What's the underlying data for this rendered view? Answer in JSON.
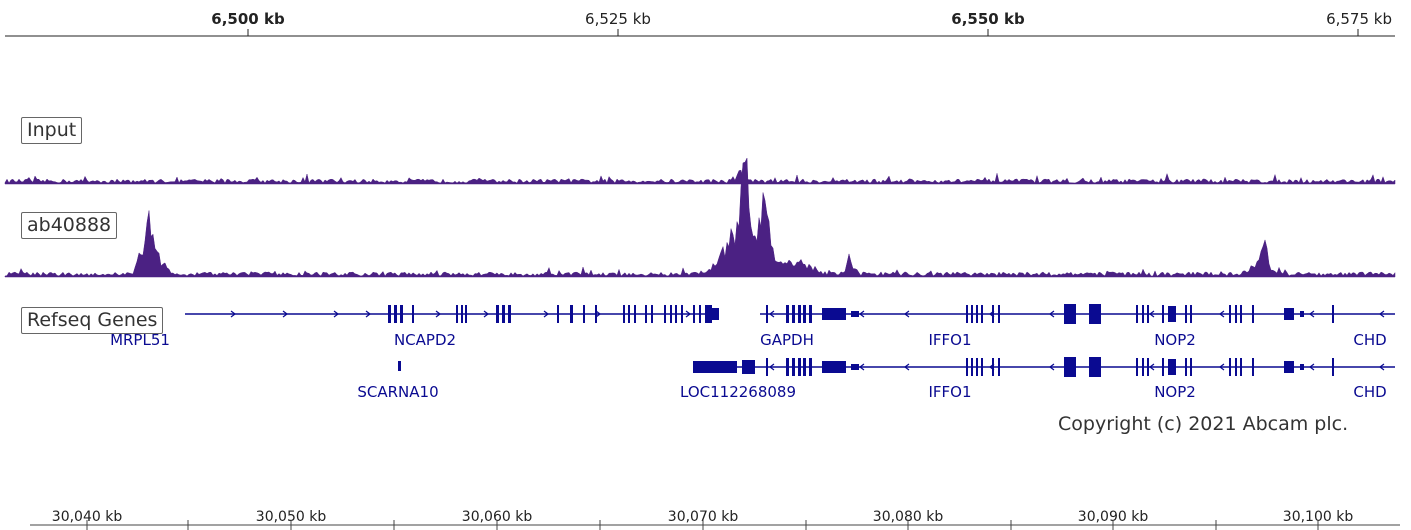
{
  "top_ruler": {
    "ticks": [
      {
        "label": "6,500 kb",
        "bold": true,
        "position_kb": 6500
      },
      {
        "label": "6,525 kb",
        "bold": false,
        "position_kb": 6525
      },
      {
        "label": "6,550 kb",
        "bold": true,
        "position_kb": 6550
      },
      {
        "label": "6,575 kb",
        "bold": false,
        "position_kb": 6575
      }
    ]
  },
  "tracks": {
    "input": {
      "label": "Input",
      "color": "#4b2183"
    },
    "chip": {
      "label": "ab40888",
      "color": "#4b2183"
    },
    "refseq": {
      "label": "Refseq Genes",
      "color": "#0a0a91"
    }
  },
  "genes_row1": [
    {
      "name": "MRPL51"
    },
    {
      "name": "NCAPD2"
    },
    {
      "name": "GAPDH"
    },
    {
      "name": "IFFO1"
    },
    {
      "name": "NOP2"
    },
    {
      "name": "CHD"
    }
  ],
  "genes_row2": [
    {
      "name": "SCARNA10"
    },
    {
      "name": "LOC112268089"
    },
    {
      "name": "IFFO1"
    },
    {
      "name": "NOP2"
    },
    {
      "name": "CHD"
    }
  ],
  "copyright": "Copyright (c) 2021 Abcam plc.",
  "bottom_ruler": {
    "ticks": [
      {
        "label": "30,040 kb"
      },
      {
        "label": "30,050 kb"
      },
      {
        "label": "30,060 kb"
      },
      {
        "label": "30,070 kb"
      },
      {
        "label": "30,080 kb"
      },
      {
        "label": "30,090 kb"
      },
      {
        "label": "30,100 kb"
      }
    ]
  }
}
